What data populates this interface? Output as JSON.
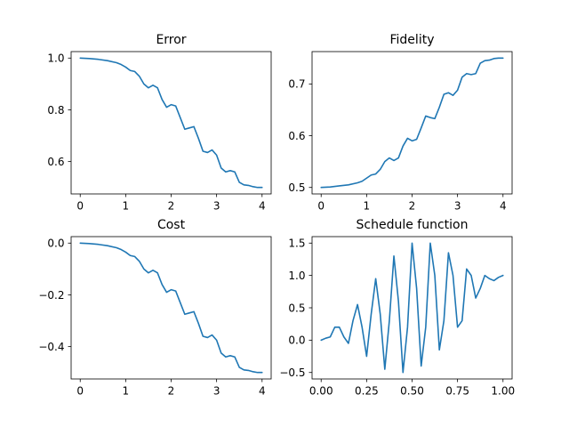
{
  "chart_data": [
    {
      "type": "line",
      "title": "Error",
      "xlabel": "",
      "ylabel": "",
      "xlim": [
        -0.2,
        4.2
      ],
      "ylim": [
        0.475,
        1.025
      ],
      "xticks": [
        0,
        1,
        2,
        3,
        4
      ],
      "xtick_labels": [
        "0",
        "1",
        "2",
        "3",
        "4"
      ],
      "yticks": [
        0.6,
        0.8,
        1.0
      ],
      "ytick_labels": [
        "0.6",
        "0.8",
        "1.0"
      ],
      "grid": false,
      "color": "#1f77b4",
      "series": [
        {
          "x": [
            0,
            0.2,
            0.4,
            0.6,
            0.8,
            0.9,
            1.0,
            1.1,
            1.2,
            1.3,
            1.4,
            1.5,
            1.6,
            1.7,
            1.8,
            1.9,
            2.0,
            2.1,
            2.2,
            2.3,
            2.4,
            2.5,
            2.6,
            2.7,
            2.8,
            2.9,
            3.0,
            3.1,
            3.2,
            3.3,
            3.4,
            3.5,
            3.6,
            3.7,
            3.8,
            3.9,
            4.0
          ],
          "y": [
            1.0,
            0.998,
            0.995,
            0.99,
            0.982,
            0.975,
            0.965,
            0.952,
            0.948,
            0.93,
            0.9,
            0.885,
            0.895,
            0.885,
            0.84,
            0.81,
            0.82,
            0.815,
            0.77,
            0.725,
            0.73,
            0.735,
            0.69,
            0.64,
            0.635,
            0.645,
            0.625,
            0.575,
            0.56,
            0.565,
            0.56,
            0.52,
            0.51,
            0.508,
            0.503,
            0.5,
            0.5
          ]
        }
      ]
    },
    {
      "type": "line",
      "title": "Fidelity",
      "xlabel": "",
      "ylabel": "",
      "xlim": [
        -0.2,
        4.2
      ],
      "ylim": [
        0.4875,
        0.7625
      ],
      "xticks": [
        0,
        1,
        2,
        3,
        4
      ],
      "xtick_labels": [
        "0",
        "1",
        "2",
        "3",
        "4"
      ],
      "yticks": [
        0.5,
        0.6,
        0.7
      ],
      "ytick_labels": [
        "0.5",
        "0.6",
        "0.7"
      ],
      "grid": false,
      "color": "#1f77b4",
      "series": [
        {
          "x": [
            0,
            0.2,
            0.4,
            0.6,
            0.8,
            0.9,
            1.0,
            1.1,
            1.2,
            1.3,
            1.4,
            1.5,
            1.6,
            1.7,
            1.8,
            1.9,
            2.0,
            2.1,
            2.2,
            2.3,
            2.4,
            2.5,
            2.6,
            2.7,
            2.8,
            2.9,
            3.0,
            3.1,
            3.2,
            3.3,
            3.4,
            3.5,
            3.6,
            3.7,
            3.8,
            3.9,
            4.0
          ],
          "y": [
            0.5,
            0.501,
            0.503,
            0.505,
            0.509,
            0.512,
            0.518,
            0.524,
            0.526,
            0.535,
            0.55,
            0.557,
            0.552,
            0.557,
            0.58,
            0.595,
            0.59,
            0.593,
            0.615,
            0.638,
            0.635,
            0.633,
            0.655,
            0.68,
            0.683,
            0.678,
            0.688,
            0.713,
            0.72,
            0.718,
            0.72,
            0.74,
            0.745,
            0.746,
            0.749,
            0.75,
            0.75
          ]
        }
      ]
    },
    {
      "type": "line",
      "title": "Cost",
      "xlabel": "",
      "ylabel": "",
      "xlim": [
        -0.2,
        4.2
      ],
      "ylim": [
        -0.525,
        0.025
      ],
      "xticks": [
        0,
        1,
        2,
        3,
        4
      ],
      "xtick_labels": [
        "0",
        "1",
        "2",
        "3",
        "4"
      ],
      "yticks": [
        -0.4,
        -0.2,
        0.0
      ],
      "ytick_labels": [
        "−0.4",
        "−0.2",
        "0.0"
      ],
      "grid": false,
      "color": "#1f77b4",
      "series": [
        {
          "x": [
            0,
            0.2,
            0.4,
            0.6,
            0.8,
            0.9,
            1.0,
            1.1,
            1.2,
            1.3,
            1.4,
            1.5,
            1.6,
            1.7,
            1.8,
            1.9,
            2.0,
            2.1,
            2.2,
            2.3,
            2.4,
            2.5,
            2.6,
            2.7,
            2.8,
            2.9,
            3.0,
            3.1,
            3.2,
            3.3,
            3.4,
            3.5,
            3.6,
            3.7,
            3.8,
            3.9,
            4.0
          ],
          "y": [
            0.0,
            -0.002,
            -0.005,
            -0.01,
            -0.018,
            -0.025,
            -0.035,
            -0.048,
            -0.052,
            -0.07,
            -0.1,
            -0.115,
            -0.105,
            -0.115,
            -0.16,
            -0.19,
            -0.18,
            -0.185,
            -0.23,
            -0.275,
            -0.27,
            -0.265,
            -0.31,
            -0.36,
            -0.365,
            -0.355,
            -0.375,
            -0.425,
            -0.44,
            -0.435,
            -0.44,
            -0.48,
            -0.49,
            -0.492,
            -0.497,
            -0.5,
            -0.5
          ]
        }
      ]
    },
    {
      "type": "line",
      "title": "Schedule function",
      "xlabel": "",
      "ylabel": "",
      "xlim": [
        -0.05,
        1.05
      ],
      "ylim": [
        -0.6,
        1.6
      ],
      "xticks": [
        0.0,
        0.25,
        0.5,
        0.75,
        1.0
      ],
      "xtick_labels": [
        "0.00",
        "0.25",
        "0.50",
        "0.75",
        "1.00"
      ],
      "yticks": [
        -0.5,
        0.0,
        0.5,
        1.0,
        1.5
      ],
      "ytick_labels": [
        "−0.5",
        "0.0",
        "0.5",
        "1.0",
        "1.5"
      ],
      "grid": false,
      "color": "#1f77b4",
      "series": [
        {
          "x": [
            0.0,
            0.025,
            0.05,
            0.075,
            0.1,
            0.125,
            0.15,
            0.175,
            0.2,
            0.225,
            0.25,
            0.275,
            0.3,
            0.325,
            0.35,
            0.375,
            0.4,
            0.425,
            0.45,
            0.475,
            0.5,
            0.525,
            0.55,
            0.575,
            0.6,
            0.625,
            0.65,
            0.675,
            0.7,
            0.725,
            0.75,
            0.775,
            0.8,
            0.825,
            0.85,
            0.875,
            0.9,
            0.925,
            0.95,
            0.975,
            1.0
          ],
          "y": [
            0.0,
            0.03,
            0.05,
            0.2,
            0.2,
            0.05,
            -0.05,
            0.3,
            0.55,
            0.2,
            -0.25,
            0.4,
            0.95,
            0.4,
            -0.45,
            0.3,
            1.3,
            0.6,
            -0.5,
            0.2,
            1.5,
            0.8,
            -0.4,
            0.2,
            1.5,
            1.0,
            -0.15,
            0.3,
            1.35,
            1.0,
            0.2,
            0.3,
            1.1,
            1.0,
            0.65,
            0.8,
            1.0,
            0.95,
            0.92,
            0.97,
            1.0
          ]
        }
      ]
    }
  ]
}
